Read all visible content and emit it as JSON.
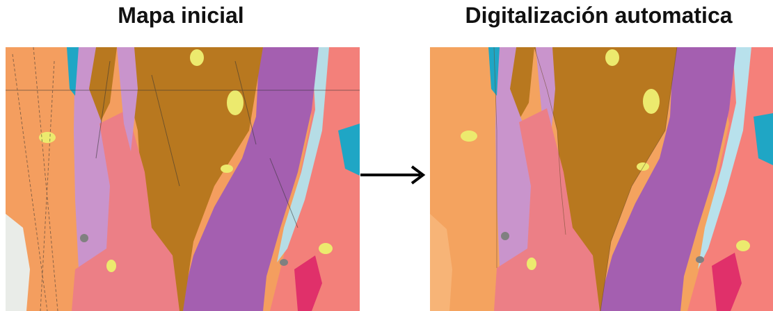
{
  "left_panel": {
    "title": "Mapa inicial"
  },
  "right_panel": {
    "title": "Digitalización automatica"
  },
  "colors": {
    "orange": "#f4a35f",
    "brown": "#b8781f",
    "lavender": "#c994cc",
    "purple": "#a45fb0",
    "pink": "#ec7f86",
    "salmon": "#f5807a",
    "light_blue": "#b8e1ec",
    "cyan": "#1fa6c5",
    "yellow": "#ecea6e",
    "gray": "#808080",
    "magenta": "#e0306a"
  }
}
